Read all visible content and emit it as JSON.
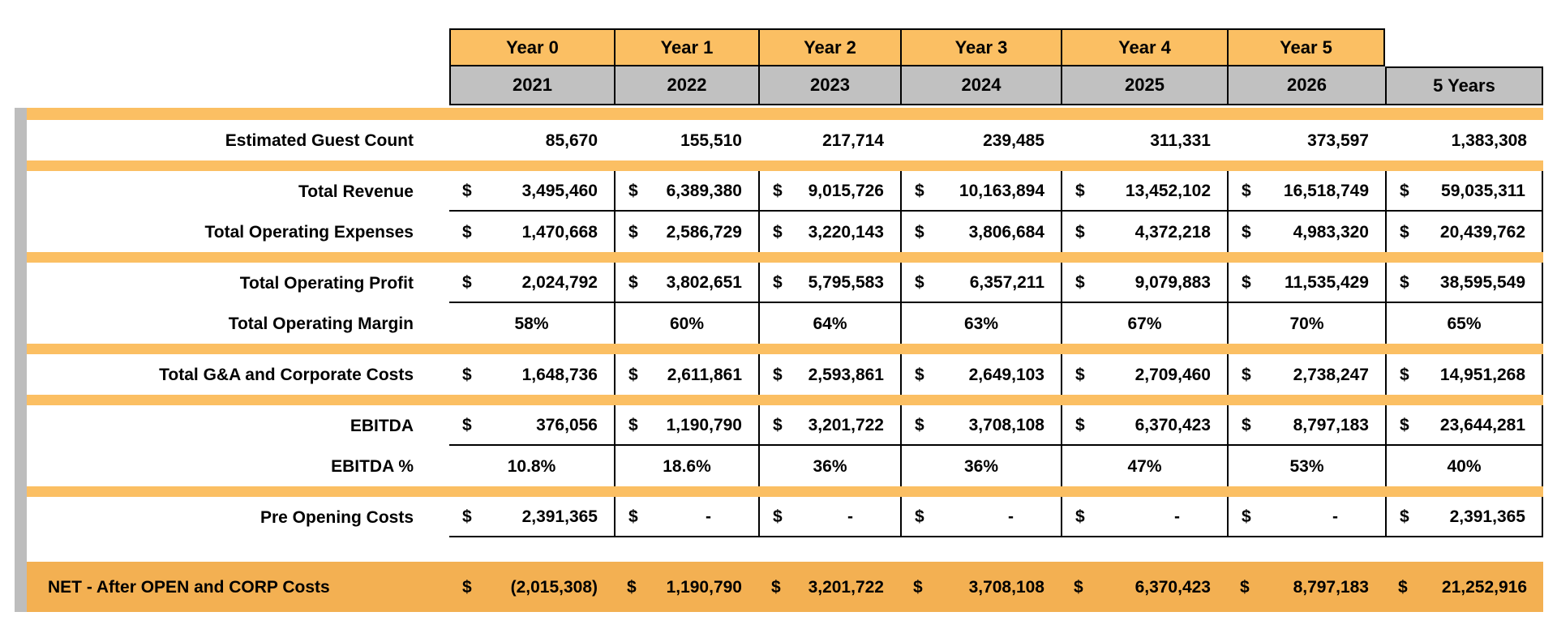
{
  "currency_symbol": "$",
  "colors": {
    "header_orange": "#FBBF63",
    "band_orange": "#FBBF63",
    "net_row_orange": "#F3B052",
    "period_header_gray": "#C1C1C1",
    "accent_bar_gray": "#BDBDBD"
  },
  "table": {
    "year_headers": [
      "Year 0",
      "Year 1",
      "Year 2",
      "Year 3",
      "Year 4",
      "Year 5"
    ],
    "period_headers": [
      "2021",
      "2022",
      "2023",
      "2024",
      "2025",
      "2026",
      "5 Years"
    ],
    "rows": [
      {
        "label": "Estimated Guest Count",
        "type": "count",
        "band_before": true,
        "bordered": false,
        "rule_below": false,
        "values": [
          "85,670",
          "155,510",
          "217,714",
          "239,485",
          "311,331",
          "373,597",
          "1,383,308"
        ]
      },
      {
        "label": "Total Revenue",
        "type": "money",
        "band_before": true,
        "bordered": true,
        "rule_below": true,
        "values": [
          "3,495,460",
          "6,389,380",
          "9,015,726",
          "10,163,894",
          "13,452,102",
          "16,518,749",
          "59,035,311"
        ]
      },
      {
        "label": "Total Operating Expenses",
        "type": "money",
        "band_before": false,
        "bordered": true,
        "rule_below": false,
        "values": [
          "1,470,668",
          "2,586,729",
          "3,220,143",
          "3,806,684",
          "4,372,218",
          "4,983,320",
          "20,439,762"
        ]
      },
      {
        "label": "Total Operating Profit",
        "type": "money",
        "band_before": true,
        "bordered": true,
        "rule_below": true,
        "values": [
          "2,024,792",
          "3,802,651",
          "5,795,583",
          "6,357,211",
          "9,079,883",
          "11,535,429",
          "38,595,549"
        ]
      },
      {
        "label": "Total Operating Margin",
        "type": "percent",
        "band_before": false,
        "bordered": true,
        "rule_below": false,
        "values": [
          "58%",
          "60%",
          "64%",
          "63%",
          "67%",
          "70%",
          "65%"
        ]
      },
      {
        "label": "Total G&A and Corporate Costs",
        "type": "money",
        "band_before": true,
        "bordered": true,
        "rule_below": false,
        "values": [
          "1,648,736",
          "2,611,861",
          "2,593,861",
          "2,649,103",
          "2,709,460",
          "2,738,247",
          "14,951,268"
        ]
      },
      {
        "label": "EBITDA",
        "type": "money",
        "band_before": true,
        "bordered": true,
        "rule_below": true,
        "values": [
          "376,056",
          "1,190,790",
          "3,201,722",
          "3,708,108",
          "6,370,423",
          "8,797,183",
          "23,644,281"
        ]
      },
      {
        "label": "EBITDA %",
        "type": "percent",
        "band_before": false,
        "bordered": true,
        "rule_below": false,
        "values": [
          "10.8%",
          "18.6%",
          "36%",
          "36%",
          "47%",
          "53%",
          "40%"
        ]
      },
      {
        "label": "Pre Opening Costs",
        "type": "money",
        "band_before": true,
        "bordered": true,
        "rule_below": true,
        "values": [
          "2,391,365",
          "-",
          "-",
          "-",
          "-",
          "-",
          "2,391,365"
        ]
      }
    ],
    "net_row": {
      "label": "NET - After OPEN and CORP Costs",
      "type": "money",
      "values": [
        "(2,015,308)",
        "1,190,790",
        "3,201,722",
        "3,708,108",
        "6,370,423",
        "8,797,183",
        "21,252,916"
      ]
    }
  }
}
